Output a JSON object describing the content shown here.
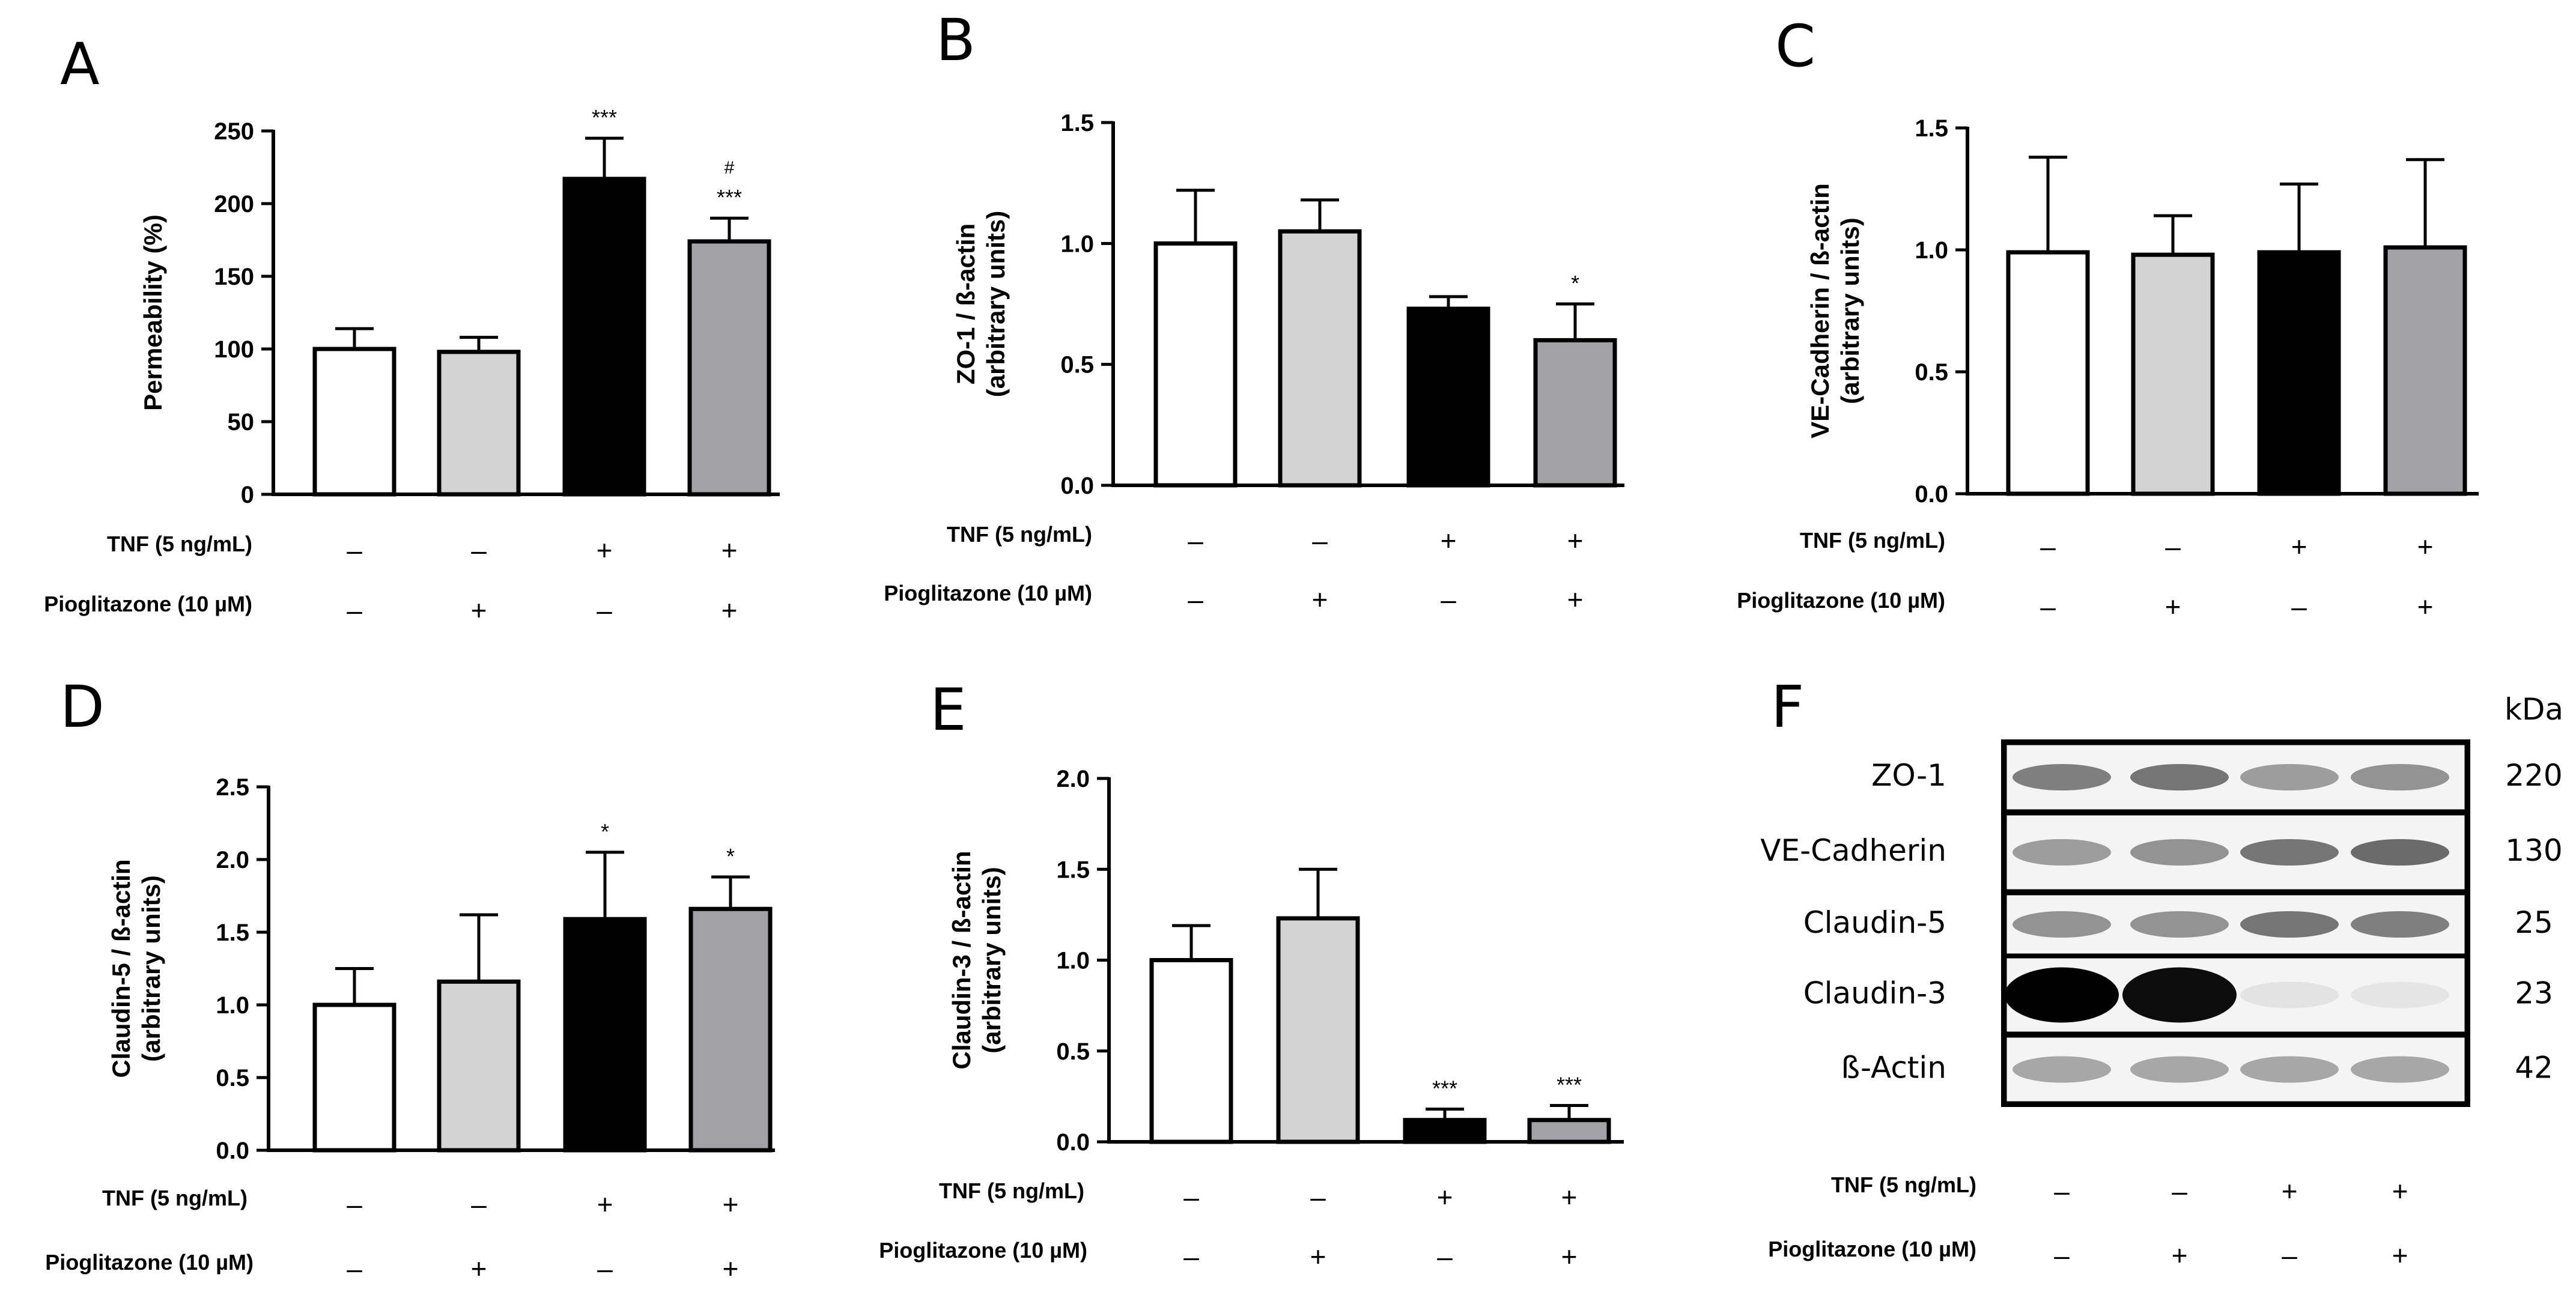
{
  "conditions": {
    "tnf_label": "TNF (5 ng/mL)",
    "pio_label": "Pioglitazone (10 µM)",
    "tnf_signs": [
      "–",
      "–",
      "+",
      "+"
    ],
    "pio_signs": [
      "–",
      "+",
      "–",
      "+"
    ]
  },
  "colors": {
    "bar_fills": [
      "#ffffff",
      "#d3d3d3",
      "#000000",
      "#a2a1a6"
    ],
    "bar_stroke": "#000000"
  },
  "chart_data": [
    {
      "panel": "A",
      "type": "bar",
      "categories": [
        "-/-",
        "-/+",
        "+/-",
        "+/+"
      ],
      "values": [
        100,
        98,
        217,
        174
      ],
      "errors": [
        14,
        10,
        28,
        16
      ],
      "ylabel_lines": [
        "Permeability (%)"
      ],
      "ylim": [
        0,
        250
      ],
      "ticks": [
        0,
        50,
        100,
        150,
        200,
        250
      ],
      "tick_labels": [
        "0",
        "50",
        "100",
        "150",
        "200",
        "250"
      ],
      "annotations": [
        [],
        [],
        [
          "***"
        ],
        [
          "***",
          "#"
        ]
      ]
    },
    {
      "panel": "B",
      "type": "bar",
      "categories": [
        "-/-",
        "-/+",
        "+/-",
        "+/+"
      ],
      "values": [
        1.0,
        1.05,
        0.73,
        0.6
      ],
      "errors": [
        0.22,
        0.13,
        0.05,
        0.15
      ],
      "ylabel_lines": [
        "ZO-1 / ß-actin",
        "(arbitrary units)"
      ],
      "ylim": [
        0,
        1.5
      ],
      "ticks": [
        0,
        0.5,
        1.0,
        1.5
      ],
      "tick_labels": [
        "0.0",
        "0.5",
        "1.0",
        "1.5"
      ],
      "annotations": [
        [],
        [],
        [],
        [
          "*"
        ]
      ]
    },
    {
      "panel": "C",
      "type": "bar",
      "categories": [
        "-/-",
        "-/+",
        "+/-",
        "+/+"
      ],
      "values": [
        0.99,
        0.98,
        0.99,
        1.01
      ],
      "errors": [
        0.39,
        0.16,
        0.28,
        0.36
      ],
      "ylabel_lines": [
        "VE-Cadherin / ß-actin",
        "(arbitrary units)"
      ],
      "ylim": [
        0,
        1.5
      ],
      "ticks": [
        0,
        0.5,
        1.0,
        1.5
      ],
      "tick_labels": [
        "0.0",
        "0.5",
        "1.0",
        "1.5"
      ],
      "annotations": [
        [],
        [],
        [],
        []
      ]
    },
    {
      "panel": "D",
      "type": "bar",
      "categories": [
        "-/-",
        "-/+",
        "+/-",
        "+/+"
      ],
      "values": [
        1.0,
        1.16,
        1.59,
        1.66
      ],
      "errors": [
        0.25,
        0.46,
        0.46,
        0.22
      ],
      "ylabel_lines": [
        "Claudin-5 / ß-actin",
        "(arbitrary units)"
      ],
      "ylim": [
        0,
        2.5
      ],
      "ticks": [
        0,
        0.5,
        1.0,
        1.5,
        2.0,
        2.5
      ],
      "tick_labels": [
        "0.0",
        "0.5",
        "1.0",
        "1.5",
        "2.0",
        "2.5"
      ],
      "annotations": [
        [],
        [],
        [
          "*"
        ],
        [
          "*"
        ]
      ]
    },
    {
      "panel": "E",
      "type": "bar",
      "categories": [
        "-/-",
        "-/+",
        "+/-",
        "+/+"
      ],
      "values": [
        1.0,
        1.23,
        0.12,
        0.12
      ],
      "errors": [
        0.19,
        0.27,
        0.06,
        0.08
      ],
      "ylabel_lines": [
        "Claudin-3 / ß-actin",
        "(arbitrary units)"
      ],
      "ylim": [
        0,
        2.0
      ],
      "ticks": [
        0,
        0.5,
        1.0,
        1.5,
        2.0
      ],
      "tick_labels": [
        "0.0",
        "0.5",
        "1.0",
        "1.5",
        "2.0"
      ],
      "annotations": [
        [],
        [],
        [
          "***"
        ],
        [
          "***"
        ]
      ]
    }
  ],
  "blot": {
    "panel": "F",
    "kda_header": "kDa",
    "rows": [
      {
        "name": "ZO-1",
        "kda": "220",
        "intensity": [
          0.55,
          0.6,
          0.4,
          0.45
        ]
      },
      {
        "name": "VE-Cadherin",
        "kda": "130",
        "intensity": [
          0.4,
          0.45,
          0.6,
          0.65
        ]
      },
      {
        "name": "Claudin-5",
        "kda": "25",
        "intensity": [
          0.45,
          0.45,
          0.6,
          0.55
        ]
      },
      {
        "name": "Claudin-3",
        "kda": "23",
        "intensity": [
          1.0,
          0.95,
          0.05,
          0.04
        ]
      },
      {
        "name": "ß-Actin",
        "kda": "42",
        "intensity": [
          0.35,
          0.35,
          0.35,
          0.35
        ]
      }
    ]
  }
}
